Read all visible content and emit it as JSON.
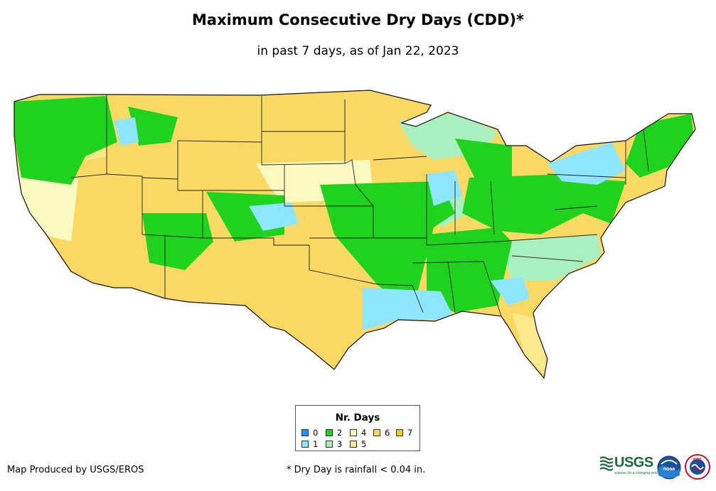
{
  "title": "Maximum Consecutive Dry Days (CDD)*",
  "subtitle": "in past 7 days, as of Jan 22, 2023",
  "legend": {
    "title": "Nr. Days",
    "items": [
      {
        "label": "0",
        "color": "#1e90ff"
      },
      {
        "label": "1",
        "color": "#8ee5ff"
      },
      {
        "label": "2",
        "color": "#1ed21e"
      },
      {
        "label": "3",
        "color": "#a8f0c0"
      },
      {
        "label": "4",
        "color": "#fafac0"
      },
      {
        "label": "5",
        "color": "#fae88c"
      },
      {
        "label": "6",
        "color": "#fad864"
      },
      {
        "label": "7",
        "color": "#fac81e"
      }
    ]
  },
  "credit": "Map Produced by USGS/EROS",
  "footnote": "* Dry Day is rainfall < 0.04 in.",
  "logos": {
    "usgs": "USGS",
    "usgs_tagline": "science for a changing world",
    "noaa": "noaa",
    "nws": "NWS"
  }
}
